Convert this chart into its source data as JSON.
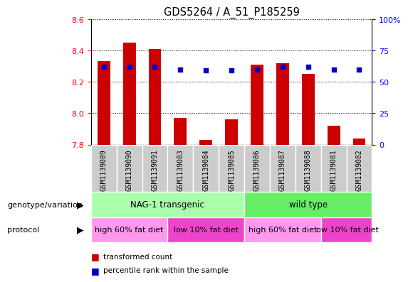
{
  "title": "GDS5264 / A_51_P185259",
  "samples": [
    "GSM1139089",
    "GSM1139090",
    "GSM1139091",
    "GSM1139083",
    "GSM1139084",
    "GSM1139085",
    "GSM1139086",
    "GSM1139087",
    "GSM1139088",
    "GSM1139081",
    "GSM1139082"
  ],
  "transformed_counts": [
    8.33,
    8.45,
    8.41,
    7.97,
    7.83,
    7.96,
    8.31,
    8.32,
    8.25,
    7.92,
    7.84
  ],
  "percentile_ranks": [
    62,
    62,
    62,
    60,
    59,
    59,
    60,
    62,
    62,
    60,
    60
  ],
  "ymin": 7.8,
  "ymax": 8.6,
  "yticks": [
    7.8,
    8.0,
    8.2,
    8.4,
    8.6
  ],
  "y2min": 0,
  "y2max": 100,
  "y2ticks": [
    0,
    25,
    50,
    75,
    100
  ],
  "bar_color": "#cc0000",
  "dot_color": "#0000cc",
  "genotype_groups": [
    {
      "label": "NAG-1 transgenic",
      "start": 0,
      "end": 5,
      "color": "#aaffaa"
    },
    {
      "label": "wild type",
      "start": 6,
      "end": 10,
      "color": "#66ee66"
    }
  ],
  "protocol_groups": [
    {
      "label": "high 60% fat diet",
      "start": 0,
      "end": 2,
      "color": "#ff99ee"
    },
    {
      "label": "low 10% fat diet",
      "start": 3,
      "end": 5,
      "color": "#ee44cc"
    },
    {
      "label": "high 60% fat diet",
      "start": 6,
      "end": 8,
      "color": "#ff99ee"
    },
    {
      "label": "low 10% fat diet",
      "start": 9,
      "end": 10,
      "color": "#ee44cc"
    }
  ],
  "xticklabel_bg": "#cccccc",
  "left_labels": [
    "genotype/variation",
    "protocol"
  ],
  "legend_items": [
    "transformed count",
    "percentile rank within the sample"
  ],
  "legend_colors": [
    "#cc0000",
    "#0000cc"
  ]
}
